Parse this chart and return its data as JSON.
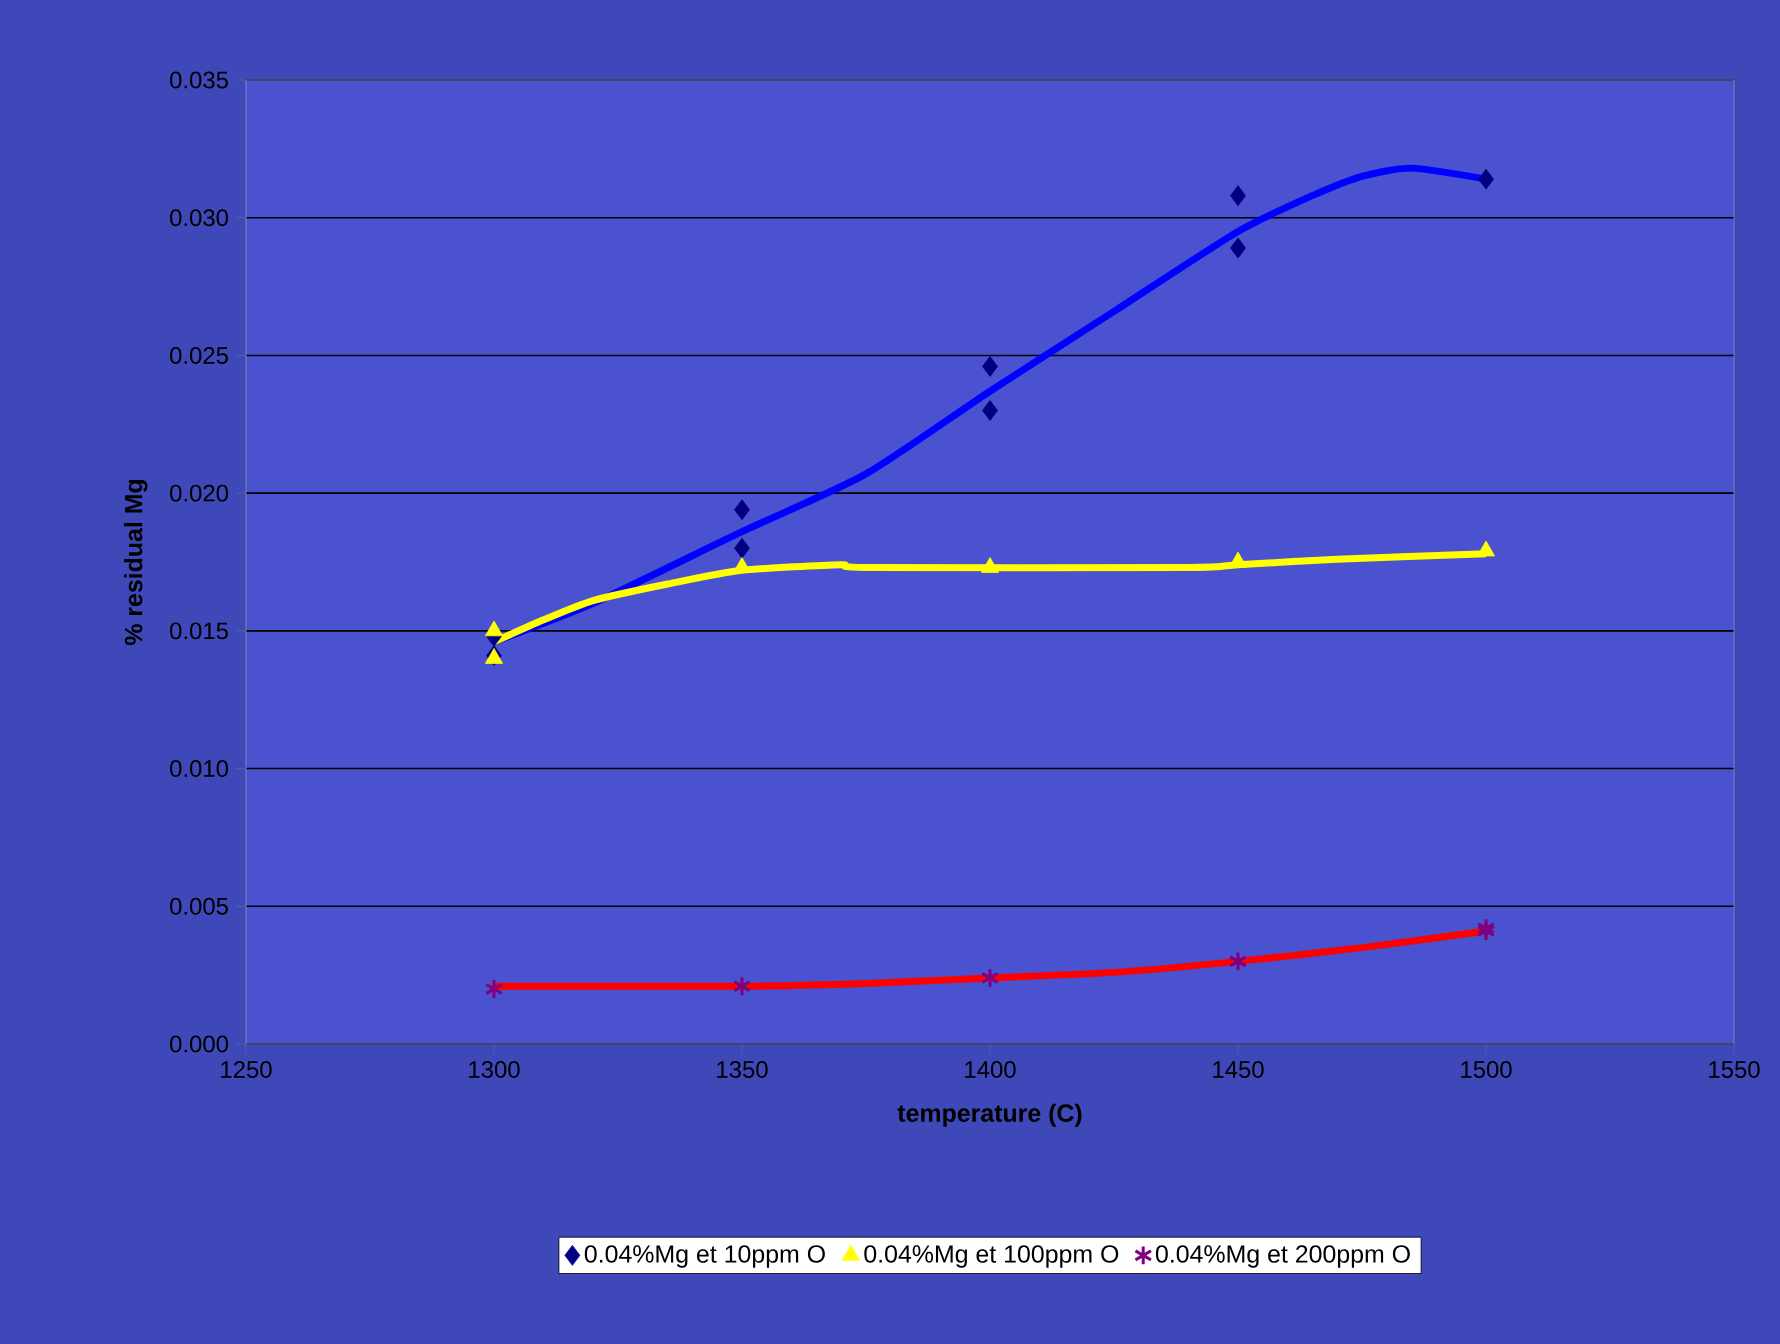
{
  "chart_data": {
    "type": "scatter",
    "xlabel": "temperature (C)",
    "ylabel": "% residual Mg",
    "xlim": [
      1250,
      1550
    ],
    "xticks": [
      1250,
      1300,
      1350,
      1400,
      1450,
      1500,
      1550
    ],
    "ylim": [
      0,
      0.035
    ],
    "yticks": [
      {
        "value": 0,
        "label": "0.000"
      },
      {
        "value": 0.005,
        "label": "0.005"
      },
      {
        "value": 0.01,
        "label": "0.010"
      },
      {
        "value": 0.015,
        "label": "0.015"
      },
      {
        "value": 0.02,
        "label": "0.020"
      },
      {
        "value": 0.025,
        "label": "0.025"
      },
      {
        "value": 0.03,
        "label": "0.030"
      },
      {
        "value": 0.035,
        "label": "0.035"
      }
    ],
    "grid": "y",
    "legend": "bottom",
    "series": [
      {
        "name": "0.04%Mg et 10ppm O",
        "marker": "diamond",
        "color": "#000080",
        "x": [
          1300,
          1300,
          1350,
          1350,
          1400,
          1400,
          1450,
          1450,
          1500
        ],
        "values": [
          0.0148,
          0.0141,
          0.0194,
          0.018,
          0.0246,
          0.023,
          0.0308,
          0.0289,
          0.0314
        ]
      },
      {
        "name": "0.04%Mg et 100ppm O",
        "marker": "triangle",
        "color": "#ffff00",
        "x": [
          1300,
          1300,
          1350,
          1400,
          1450,
          1500
        ],
        "values": [
          0.015,
          0.014,
          0.0173,
          0.0173,
          0.0175,
          0.0179
        ]
      },
      {
        "name": "0.04%Mg et 200ppm O",
        "marker": "cross",
        "color": "#800080",
        "x": [
          1300,
          1350,
          1400,
          1450,
          1500,
          1500
        ],
        "values": [
          0.002,
          0.0021,
          0.0024,
          0.003,
          0.0041,
          0.0042
        ]
      },
      {
        "type": "line",
        "marker": "none",
        "color": "#0000ff",
        "x": [
          1300,
          1320,
          1350,
          1375,
          1400,
          1425,
          1450,
          1465,
          1475,
          1485,
          1500
        ],
        "values": [
          0.0146,
          0.016,
          0.0186,
          0.0207,
          0.0237,
          0.0266,
          0.0295,
          0.0308,
          0.0315,
          0.0318,
          0.0314
        ]
      },
      {
        "type": "line",
        "marker": "none",
        "color": "#ffff00",
        "x": [
          1300,
          1310,
          1320,
          1335,
          1350,
          1370,
          1375,
          1440,
          1450,
          1470,
          1500
        ],
        "values": [
          0.0146,
          0.0154,
          0.0161,
          0.0167,
          0.0172,
          0.0174,
          0.0173,
          0.0173,
          0.0174,
          0.0176,
          0.0178
        ]
      },
      {
        "type": "line",
        "marker": "none",
        "color": "#ff0000",
        "x": [
          1300,
          1350,
          1375,
          1400,
          1425,
          1450,
          1475,
          1500
        ],
        "values": [
          0.0021,
          0.0021,
          0.0022,
          0.0024,
          0.0026,
          0.003,
          0.0035,
          0.0041
        ]
      }
    ]
  }
}
